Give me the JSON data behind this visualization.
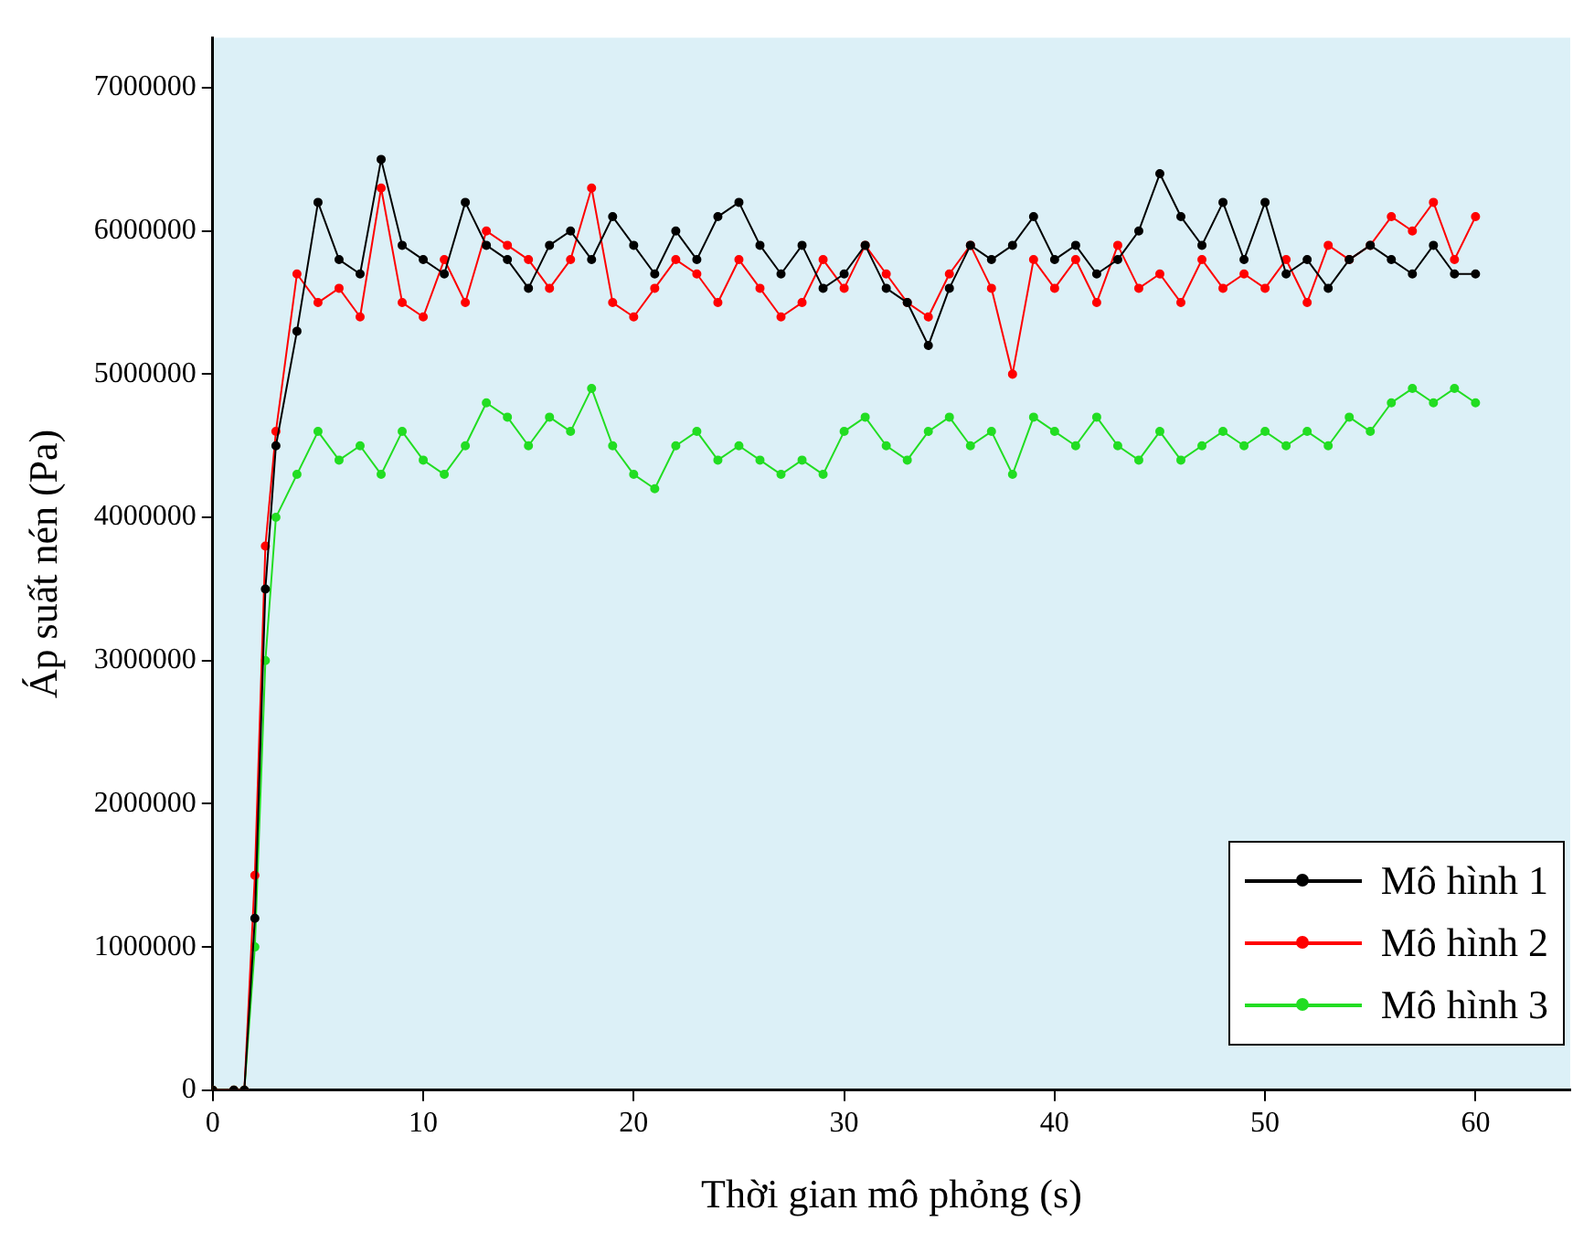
{
  "chart_data": {
    "type": "line",
    "xlabel": "Thời gian mô phỏng (s)",
    "ylabel": "Áp suất nén (Pa)",
    "x": [
      0,
      1,
      1.5,
      2,
      2.5,
      3,
      4,
      5,
      6,
      7,
      8,
      9,
      10,
      11,
      12,
      13,
      14,
      15,
      16,
      17,
      18,
      19,
      20,
      21,
      22,
      23,
      24,
      25,
      26,
      27,
      28,
      29,
      30,
      31,
      32,
      33,
      34,
      35,
      36,
      37,
      38,
      39,
      40,
      41,
      42,
      43,
      44,
      45,
      46,
      47,
      48,
      49,
      50,
      51,
      52,
      53,
      54,
      55,
      56,
      57,
      58,
      59,
      60
    ],
    "series": [
      {
        "name": "Mô hình 1",
        "color": "#000000",
        "values": [
          0,
          0,
          0,
          1200000,
          3500000,
          4500000,
          5300000,
          6200000,
          5800000,
          5700000,
          6500000,
          5900000,
          5800000,
          5700000,
          6200000,
          5900000,
          5800000,
          5600000,
          5900000,
          6000000,
          5800000,
          6100000,
          5900000,
          5700000,
          6000000,
          5800000,
          6100000,
          6200000,
          5900000,
          5700000,
          5900000,
          5600000,
          5700000,
          5900000,
          5600000,
          5500000,
          5200000,
          5600000,
          5900000,
          5800000,
          5900000,
          6100000,
          5800000,
          5900000,
          5700000,
          5800000,
          6000000,
          6400000,
          6100000,
          5900000,
          6200000,
          5800000,
          6200000,
          5700000,
          5800000,
          5600000,
          5800000,
          5900000,
          5800000,
          5700000,
          5900000,
          5700000,
          5700000
        ]
      },
      {
        "name": "Mô hình 2",
        "color": "#ff0000",
        "values": [
          0,
          0,
          0,
          1500000,
          3800000,
          4600000,
          5700000,
          5500000,
          5600000,
          5400000,
          6300000,
          5500000,
          5400000,
          5800000,
          5500000,
          6000000,
          5900000,
          5800000,
          5600000,
          5800000,
          6300000,
          5500000,
          5400000,
          5600000,
          5800000,
          5700000,
          5500000,
          5800000,
          5600000,
          5400000,
          5500000,
          5800000,
          5600000,
          5900000,
          5700000,
          5500000,
          5400000,
          5700000,
          5900000,
          5600000,
          5000000,
          5800000,
          5600000,
          5800000,
          5500000,
          5900000,
          5600000,
          5700000,
          5500000,
          5800000,
          5600000,
          5700000,
          5600000,
          5800000,
          5500000,
          5900000,
          5800000,
          5900000,
          6100000,
          6000000,
          6200000,
          5800000,
          6100000
        ]
      },
      {
        "name": "Mô hình 3",
        "color": "#22dd22",
        "values": [
          0,
          0,
          0,
          1000000,
          3000000,
          4000000,
          4300000,
          4600000,
          4400000,
          4500000,
          4300000,
          4600000,
          4400000,
          4300000,
          4500000,
          4800000,
          4700000,
          4500000,
          4700000,
          4600000,
          4900000,
          4500000,
          4300000,
          4200000,
          4500000,
          4600000,
          4400000,
          4500000,
          4400000,
          4300000,
          4400000,
          4300000,
          4600000,
          4700000,
          4500000,
          4400000,
          4600000,
          4700000,
          4500000,
          4600000,
          4300000,
          4700000,
          4600000,
          4500000,
          4700000,
          4500000,
          4400000,
          4600000,
          4400000,
          4500000,
          4600000,
          4500000,
          4600000,
          4500000,
          4600000,
          4500000,
          4700000,
          4600000,
          4800000,
          4900000,
          4800000,
          4900000,
          4800000
        ]
      }
    ],
    "xlim": [
      0,
      64.5
    ],
    "xticks": [
      0,
      10,
      20,
      30,
      40,
      50,
      60
    ],
    "ylim": [
      0,
      7350000
    ],
    "yticks": [
      0,
      1000000,
      2000000,
      3000000,
      4000000,
      5000000,
      6000000,
      7000000
    ],
    "grid": false,
    "legend": "bottom right",
    "marker": "circle",
    "line_style": "solid"
  }
}
